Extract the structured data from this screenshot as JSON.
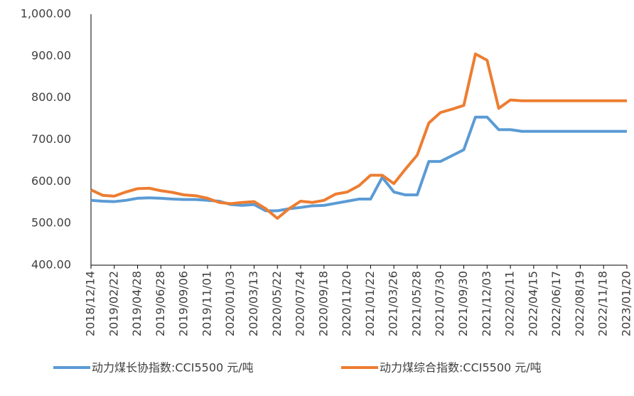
{
  "chart_data": {
    "type": "line",
    "categories": [
      "2018/12/14",
      null,
      "2019/02/22",
      null,
      "2019/04/28",
      null,
      "2019/06/28",
      null,
      "2019/09/06",
      null,
      "2019/11/01",
      null,
      "2020/01/03",
      null,
      "2020/03/13",
      null,
      "2020/05/22",
      null,
      "2020/07/24",
      null,
      "2020/09/18",
      null,
      "2020/11/20",
      null,
      "2021/01/22",
      null,
      "2021/03/26",
      null,
      "2021/05/28",
      null,
      "2021/07/30",
      null,
      "2021/09/30",
      null,
      "2021/12/03",
      null,
      "2022/02/11",
      null,
      "2022/04/15",
      null,
      "2022/06/17",
      null,
      "2022/08/19",
      null,
      "2022/11/18",
      null,
      "2023/01/20"
    ],
    "series": [
      {
        "name": "动力煤长协指数:CCI5500 元/吨",
        "color": "#5b9bd5",
        "values": [
          555,
          553,
          552,
          555,
          560,
          561,
          560,
          558,
          557,
          557,
          555,
          553,
          545,
          543,
          545,
          530,
          530,
          535,
          538,
          542,
          543,
          548,
          553,
          558,
          558,
          610,
          575,
          568,
          568,
          648,
          648,
          662,
          676,
          754,
          754,
          724,
          724,
          720,
          720,
          720,
          720,
          720,
          720,
          720,
          720,
          720,
          720
        ]
      },
      {
        "name": "动力煤综合指数:CCI5500 元/吨",
        "color": "#ed7d31",
        "values": [
          580,
          567,
          565,
          575,
          583,
          584,
          578,
          574,
          568,
          566,
          560,
          550,
          547,
          550,
          552,
          535,
          512,
          535,
          553,
          550,
          555,
          570,
          575,
          590,
          615,
          615,
          595,
          630,
          663,
          740,
          765,
          773,
          782,
          905,
          890,
          775,
          795,
          793,
          793,
          793,
          793,
          793,
          793,
          793,
          793,
          793,
          793
        ]
      }
    ],
    "ylim": [
      400,
      1000
    ],
    "yticks": [
      {
        "value": 400,
        "label": "400.00"
      },
      {
        "value": 500,
        "label": "500.00"
      },
      {
        "value": 600,
        "label": "600.00"
      },
      {
        "value": 700,
        "label": "700.00"
      },
      {
        "value": 800,
        "label": "800.00"
      },
      {
        "value": 900,
        "label": "900.00"
      },
      {
        "value": 1000,
        "label": "1,000.00"
      }
    ],
    "grid": false,
    "legend": "bottom"
  }
}
